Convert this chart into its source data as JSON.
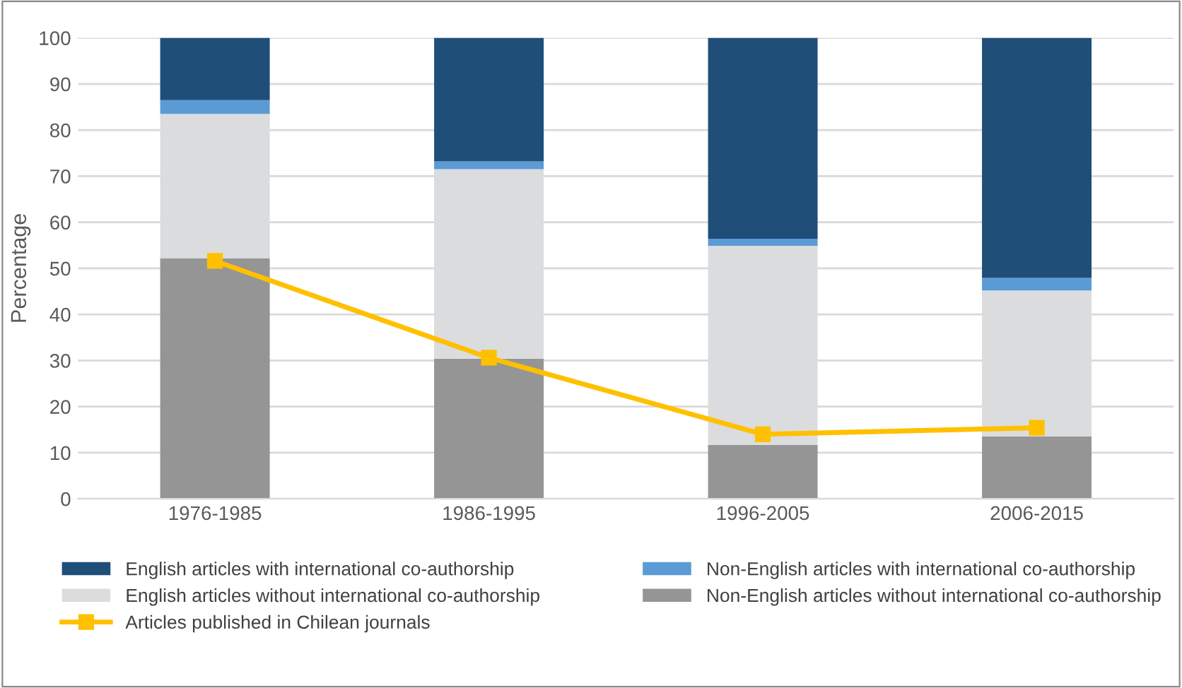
{
  "chart_data": {
    "type": "bar",
    "stacked": true,
    "ylabel": "Percentage",
    "categories": [
      "1976-1985",
      "1986-1995",
      "1996-2005",
      "2006-2015"
    ],
    "series": [
      {
        "name": "Non-English articles without international co-authorship",
        "color": "#959595",
        "values": [
          52.2,
          30.4,
          11.7,
          13.5
        ]
      },
      {
        "name": "English articles without international co-authorship",
        "color": "#dbdcde",
        "values": [
          31.3,
          41.1,
          43.2,
          31.7
        ]
      },
      {
        "name": "Non-English articles with international co-authorship",
        "color": "#5b9bd5",
        "values": [
          3.0,
          1.7,
          1.5,
          2.7
        ]
      },
      {
        "name": "English articles with international co-authorship",
        "color": "#1f4e79",
        "values": [
          13.5,
          26.8,
          43.6,
          52.1
        ]
      },
      {
        "name": "Articles published in Chilean journals",
        "type": "line",
        "color": "#ffc000",
        "marker": "square",
        "values": [
          51.6,
          30.6,
          14.0,
          15.4
        ]
      }
    ],
    "ylim": [
      0,
      100
    ],
    "yticks": [
      0,
      10,
      20,
      30,
      40,
      50,
      60,
      70,
      80,
      90,
      100
    ],
    "grid": "y",
    "legend": "bottom"
  }
}
